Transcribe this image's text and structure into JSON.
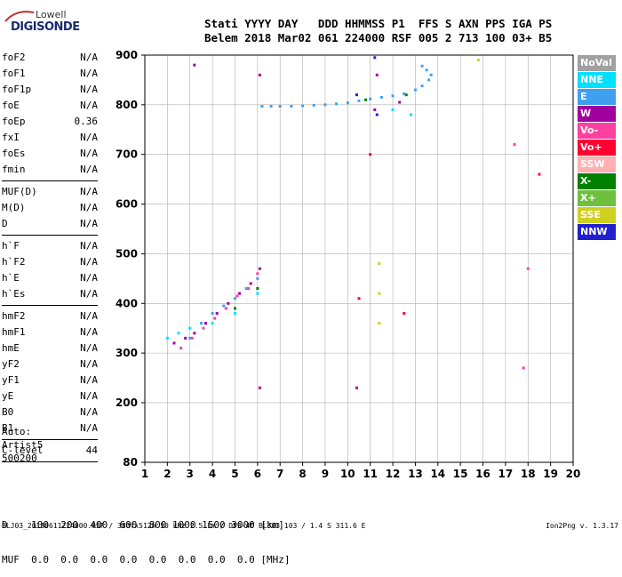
{
  "logo": {
    "line1": "Lowell",
    "line2": "DIGISONDE"
  },
  "header": {
    "line1": "Stati YYYY DAY   DDD HHMMSS P1  FFS S AXN PPS IGA PS",
    "line2": "Belem 2018 Mar02 061 224000 RSF 005 2 713 100 03+ B5"
  },
  "params": [
    {
      "group": [
        {
          "name": "foF2",
          "value": "N/A"
        },
        {
          "name": "foF1",
          "value": "N/A"
        },
        {
          "name": "foF1p",
          "value": "N/A"
        },
        {
          "name": "foE",
          "value": "N/A"
        },
        {
          "name": "foEp",
          "value": "0.36"
        },
        {
          "name": "fxI",
          "value": "N/A"
        },
        {
          "name": "foEs",
          "value": "N/A"
        },
        {
          "name": "fmin",
          "value": "N/A"
        }
      ]
    },
    {
      "group": [
        {
          "name": "MUF(D)",
          "value": "N/A"
        },
        {
          "name": "M(D)",
          "value": "N/A"
        },
        {
          "name": "D",
          "value": "N/A"
        }
      ]
    },
    {
      "group": [
        {
          "name": "h`F",
          "value": "N/A"
        },
        {
          "name": "h`F2",
          "value": "N/A"
        },
        {
          "name": "h`E",
          "value": "N/A"
        },
        {
          "name": "h`Es",
          "value": "N/A"
        }
      ]
    },
    {
      "group": [
        {
          "name": "hmF2",
          "value": "N/A"
        },
        {
          "name": "hmF1",
          "value": "N/A"
        },
        {
          "name": "hmE",
          "value": "N/A"
        },
        {
          "name": "yF2",
          "value": "N/A"
        },
        {
          "name": "yF1",
          "value": "N/A"
        },
        {
          "name": "yE",
          "value": "N/A"
        },
        {
          "name": "B0",
          "value": "N/A"
        },
        {
          "name": "B1",
          "value": "N/A"
        }
      ]
    },
    {
      "group": [
        {
          "name": "C-level",
          "value": "44"
        }
      ]
    }
  ],
  "auto": {
    "line1": "Auto:",
    "line2": "Artist5",
    "line3": "500200"
  },
  "legend": [
    {
      "label": "NoVal",
      "color": "#a0a0a0"
    },
    {
      "label": "NNE",
      "color": "#00e0ff"
    },
    {
      "label": "E",
      "color": "#40a0f0"
    },
    {
      "label": "W",
      "color": "#a000a0"
    },
    {
      "label": "Vo-",
      "color": "#ff40a0"
    },
    {
      "label": "Vo+",
      "color": "#ff0030"
    },
    {
      "label": "SSW",
      "color": "#ffb0b0"
    },
    {
      "label": "X-",
      "color": "#008000"
    },
    {
      "label": "X+",
      "color": "#70c040"
    },
    {
      "label": "SSE",
      "color": "#d0d020"
    },
    {
      "label": "NNW",
      "color": "#2020d0"
    }
  ],
  "bottom": {
    "line1": "D    100  200  400  600  800 1000 1500 3000 [km]",
    "line2": "MUF  0.0  0.0  0.0  0.0  0.0  0.0  0.0  0.0 [MHz]"
  },
  "footer": "BLJ03_20180611224000.RSF / 380fx512h 50 kHz 2.5 km / DPS-4D BLJ03 103 / 1.4 S 311.6 E",
  "version": "Ion2Png v. 1.3.17",
  "chart_data": {
    "type": "scatter",
    "xlim": [
      1,
      20
    ],
    "ylim": [
      80,
      900
    ],
    "xticks": [
      1,
      2,
      3,
      4,
      5,
      6,
      7,
      8,
      9,
      10,
      11,
      12,
      13,
      14,
      15,
      16,
      17,
      18,
      19,
      20
    ],
    "yticks": [
      80,
      200,
      300,
      400,
      500,
      600,
      700,
      800,
      900
    ],
    "grid": true,
    "legend_position": "right",
    "series": [
      {
        "color": "#40a0f0",
        "points": [
          [
            6.2,
            797
          ],
          [
            6.6,
            797
          ],
          [
            7.0,
            797
          ],
          [
            7.5,
            797
          ],
          [
            8.0,
            798
          ],
          [
            8.5,
            799
          ],
          [
            9.0,
            800
          ],
          [
            9.5,
            802
          ],
          [
            10.0,
            804
          ],
          [
            10.5,
            808
          ],
          [
            11.0,
            812
          ],
          [
            11.5,
            815
          ],
          [
            12.0,
            818
          ],
          [
            12.5,
            822
          ],
          [
            13.0,
            830
          ],
          [
            13.3,
            838
          ],
          [
            13.6,
            850
          ],
          [
            13.7,
            860
          ],
          [
            13.5,
            870
          ],
          [
            13.3,
            878
          ],
          [
            3.0,
            330
          ],
          [
            3.5,
            360
          ],
          [
            4.0,
            380
          ],
          [
            4.5,
            395
          ],
          [
            5.0,
            410
          ],
          [
            5.5,
            430
          ],
          [
            6.0,
            450
          ]
        ]
      },
      {
        "color": "#a000a0",
        "points": [
          [
            2.3,
            320
          ],
          [
            2.8,
            330
          ],
          [
            3.2,
            340
          ],
          [
            3.7,
            360
          ],
          [
            4.2,
            380
          ],
          [
            4.7,
            400
          ],
          [
            5.2,
            420
          ],
          [
            5.7,
            440
          ],
          [
            6.1,
            470
          ],
          [
            11.2,
            790
          ],
          [
            12.3,
            805
          ],
          [
            3.2,
            880
          ],
          [
            6.1,
            860
          ],
          [
            11.3,
            860
          ],
          [
            6.1,
            230
          ],
          [
            10.4,
            230
          ]
        ]
      },
      {
        "color": "#ff40a0",
        "points": [
          [
            2.6,
            310
          ],
          [
            3.1,
            330
          ],
          [
            3.6,
            350
          ],
          [
            4.1,
            370
          ],
          [
            4.6,
            390
          ],
          [
            5.1,
            415
          ],
          [
            5.6,
            430
          ],
          [
            6.0,
            460
          ],
          [
            17.4,
            720
          ],
          [
            18.0,
            470
          ],
          [
            17.8,
            270
          ]
        ]
      },
      {
        "color": "#00e0ff",
        "points": [
          [
            2.0,
            330
          ],
          [
            2.5,
            340
          ],
          [
            3.0,
            350
          ],
          [
            4.0,
            360
          ],
          [
            5.0,
            380
          ],
          [
            6.0,
            420
          ],
          [
            12.0,
            790
          ],
          [
            12.8,
            780
          ]
        ]
      },
      {
        "color": "#008000",
        "points": [
          [
            10.8,
            810
          ],
          [
            12.6,
            820
          ],
          [
            5.0,
            390
          ],
          [
            6.0,
            430
          ]
        ]
      },
      {
        "color": "#d0d020",
        "points": [
          [
            11.4,
            480
          ],
          [
            11.4,
            420
          ],
          [
            11.4,
            360
          ],
          [
            15.8,
            890
          ]
        ]
      },
      {
        "color": "#2020d0",
        "points": [
          [
            11.2,
            895
          ],
          [
            11.3,
            780
          ],
          [
            10.4,
            820
          ]
        ]
      },
      {
        "color": "#ff0030",
        "points": [
          [
            10.5,
            410
          ],
          [
            11.0,
            700
          ],
          [
            12.5,
            380
          ],
          [
            18.5,
            660
          ]
        ]
      }
    ]
  }
}
